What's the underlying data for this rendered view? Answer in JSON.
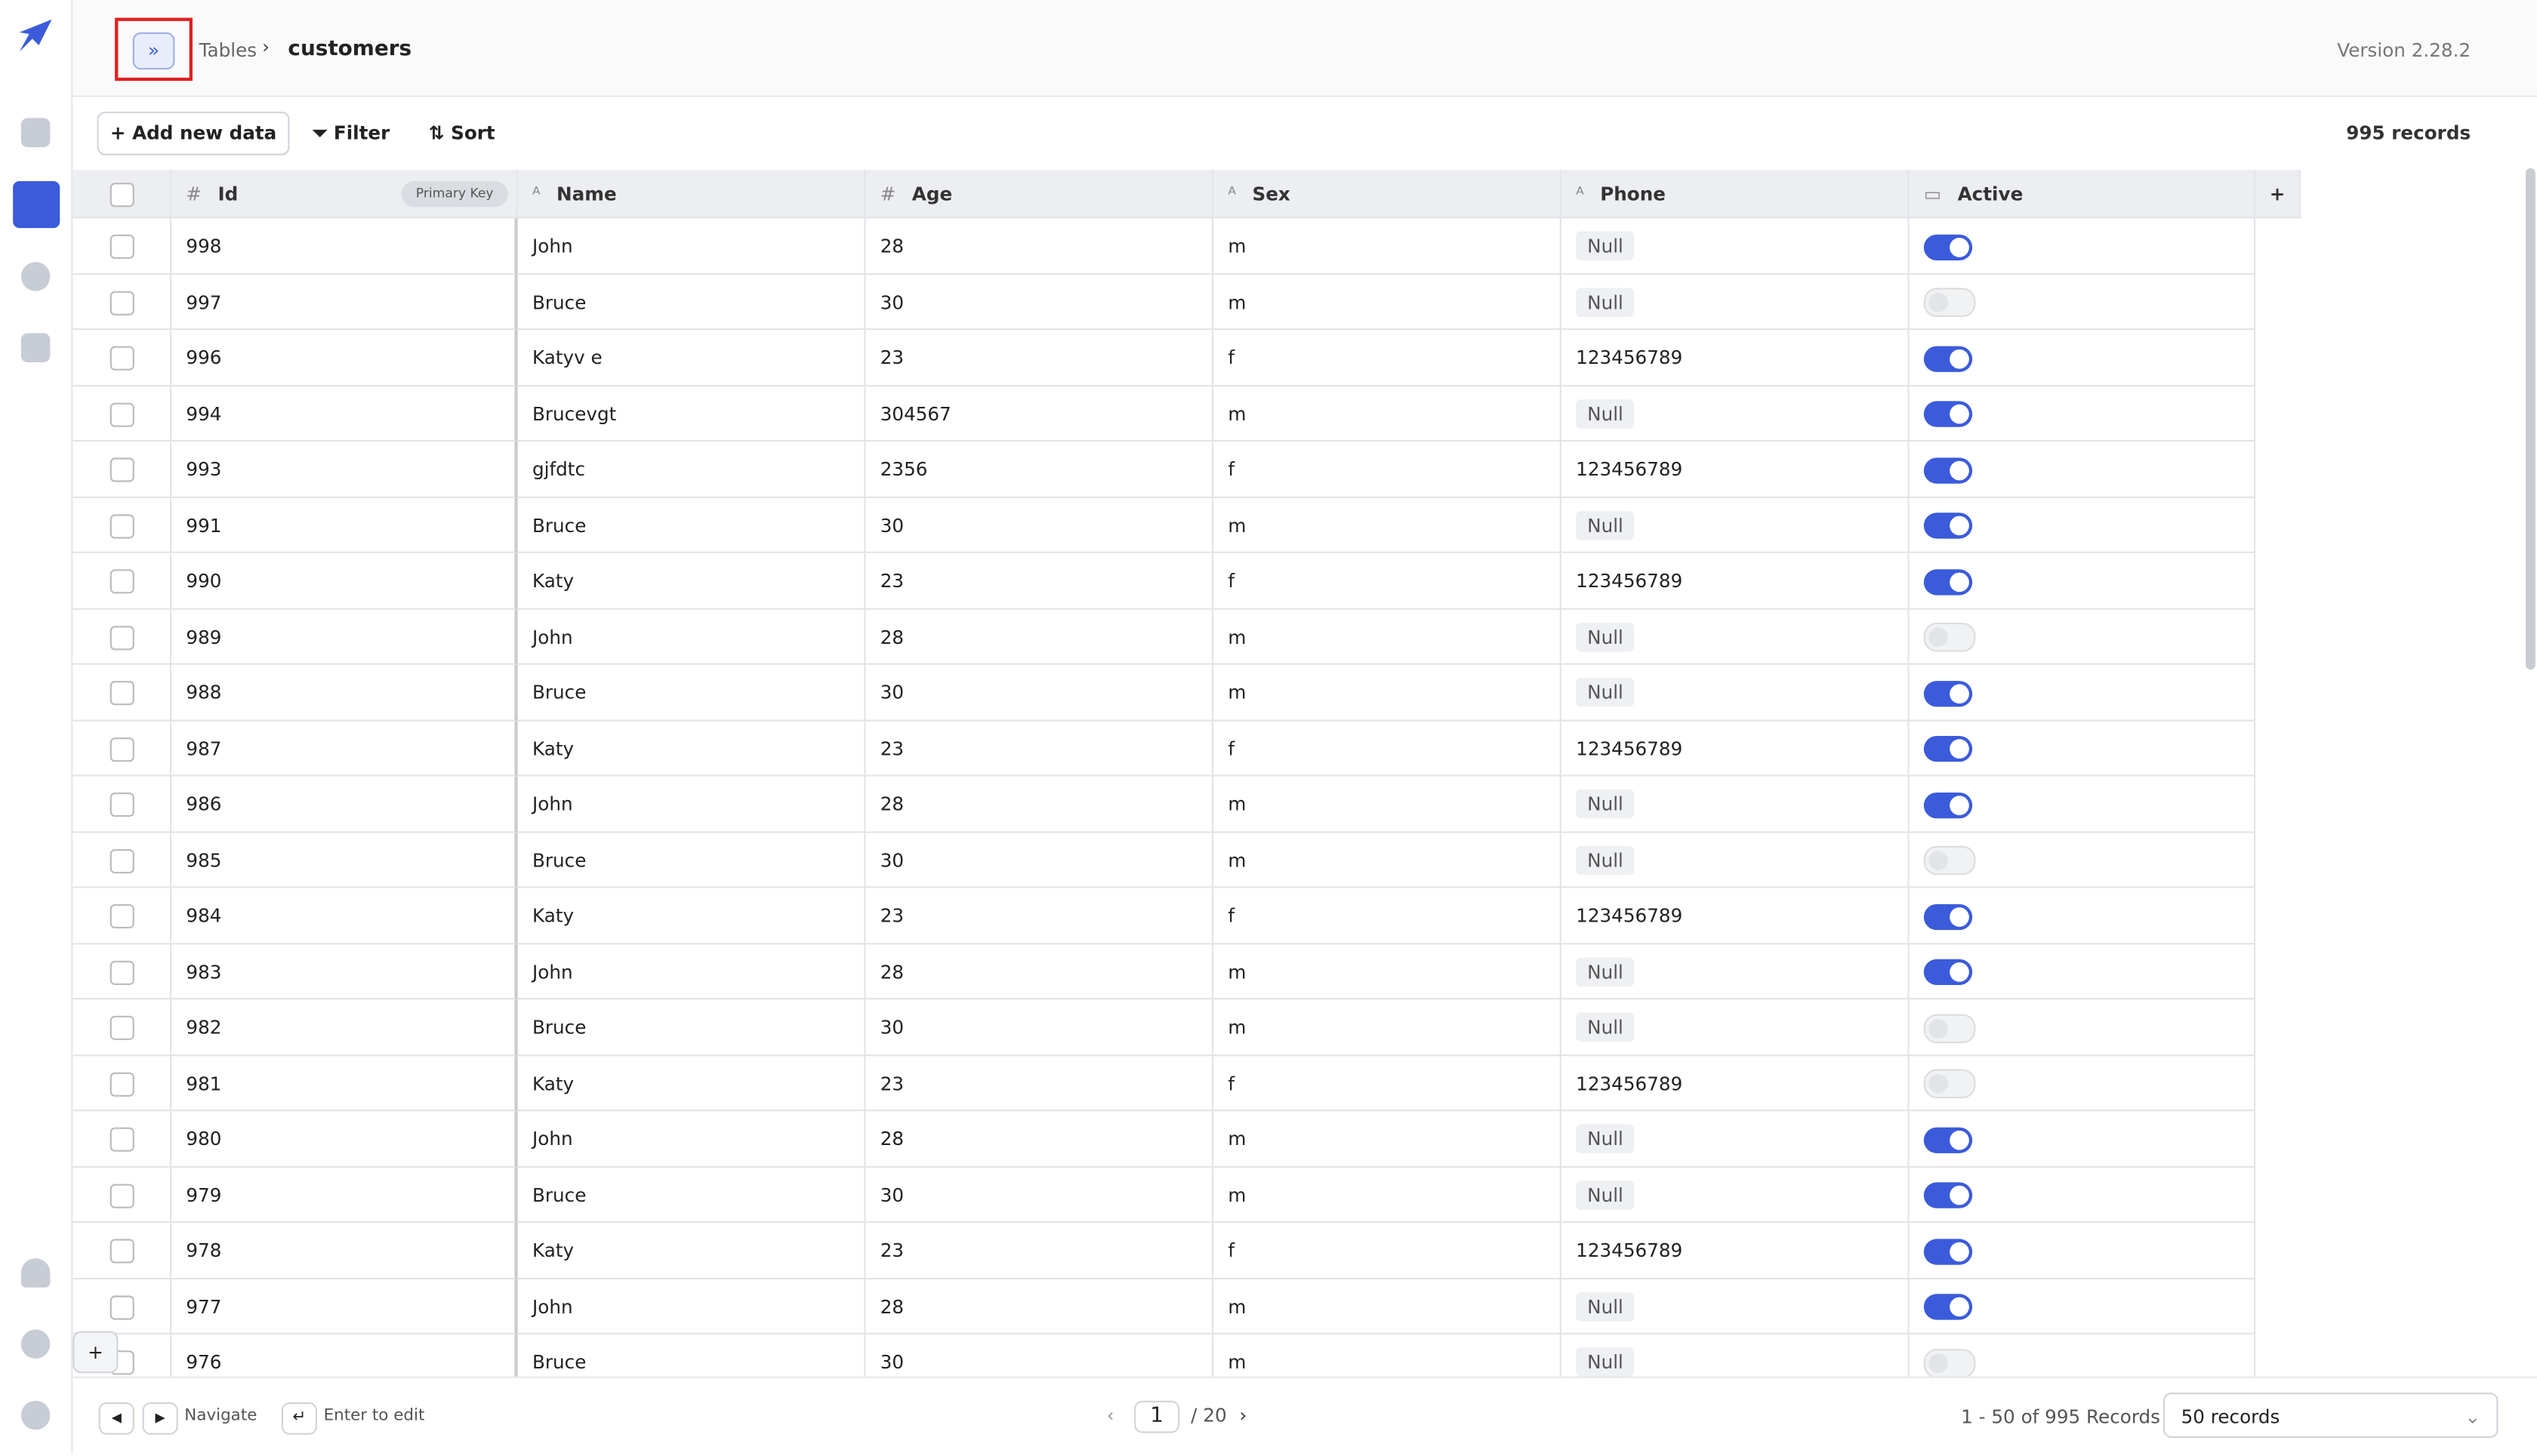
{
  "header": {
    "breadcrumb": "Tables",
    "table_name": "customers",
    "version": "Version 2.28.2"
  },
  "toolbar": {
    "add": "Add new data",
    "filter": "Filter",
    "sort": "Sort",
    "count": "995 records"
  },
  "table": {
    "columns": [
      "Id",
      "Name",
      "Age",
      "Sex",
      "Phone",
      "Active"
    ],
    "primary_key": "Primary Key",
    "rows": [
      [
        "998",
        "John",
        "28",
        "m",
        "Null",
        true
      ],
      [
        "997",
        "Bruce",
        "30",
        "m",
        "Null",
        false
      ],
      [
        "996",
        "Katyv e",
        "23",
        "f",
        "123456789",
        true
      ],
      [
        "994",
        "Brucevgt",
        "304567",
        "m",
        "Null",
        true
      ],
      [
        "993",
        "gjfdtc",
        "2356",
        "f",
        "123456789",
        true
      ],
      [
        "991",
        "Bruce",
        "30",
        "m",
        "Null",
        true
      ],
      [
        "990",
        "Katy",
        "23",
        "f",
        "123456789",
        true
      ],
      [
        "989",
        "John",
        "28",
        "m",
        "Null",
        false
      ],
      [
        "988",
        "Bruce",
        "30",
        "m",
        "Null",
        true
      ],
      [
        "987",
        "Katy",
        "23",
        "f",
        "123456789",
        true
      ],
      [
        "986",
        "John",
        "28",
        "m",
        "Null",
        true
      ],
      [
        "985",
        "Bruce",
        "30",
        "m",
        "Null",
        false
      ],
      [
        "984",
        "Katy",
        "23",
        "f",
        "123456789",
        true
      ],
      [
        "983",
        "John",
        "28",
        "m",
        "Null",
        true
      ],
      [
        "982",
        "Bruce",
        "30",
        "m",
        "Null",
        false
      ],
      [
        "981",
        "Katy",
        "23",
        "f",
        "123456789",
        false
      ],
      [
        "980",
        "John",
        "28",
        "m",
        "Null",
        true
      ],
      [
        "979",
        "Bruce",
        "30",
        "m",
        "Null",
        true
      ],
      [
        "978",
        "Katy",
        "23",
        "f",
        "123456789",
        true
      ],
      [
        "977",
        "John",
        "28",
        "m",
        "Null",
        true
      ],
      [
        "976",
        "Bruce",
        "30",
        "m",
        "Null",
        false
      ]
    ]
  },
  "footer": {
    "navigate": "Navigate",
    "enter": "Enter to edit",
    "page": "1",
    "pages": "/ 20",
    "range": "1 - 50 of 995 Records",
    "page_size": "50 records"
  }
}
